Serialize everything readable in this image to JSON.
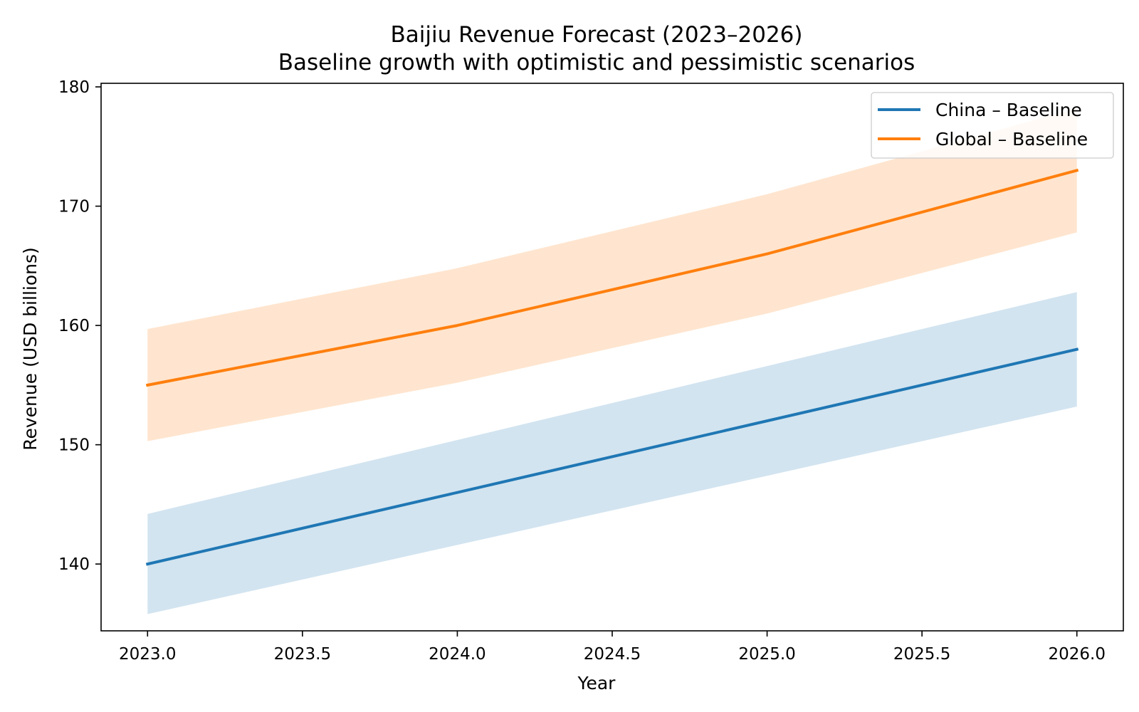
{
  "chart_data": {
    "type": "line",
    "title": "Baijiu Revenue Forecast (2023–2026)",
    "subtitle": "Baseline growth with optimistic and pessimistic scenarios",
    "xlabel": "Year",
    "ylabel": "Revenue (USD billions)",
    "x": [
      2023,
      2024,
      2025,
      2026
    ],
    "xlim": [
      2022.85,
      2026.15
    ],
    "ylim": [
      134.4,
      180.3
    ],
    "xticks": [
      2023.0,
      2023.5,
      2024.0,
      2024.5,
      2025.0,
      2025.5,
      2026.0
    ],
    "xtick_labels": [
      "2023.0",
      "2023.5",
      "2024.0",
      "2024.5",
      "2025.0",
      "2025.5",
      "2026.0"
    ],
    "yticks": [
      140,
      150,
      160,
      170,
      180
    ],
    "ytick_labels": [
      "140",
      "150",
      "160",
      "170",
      "180"
    ],
    "grid": false,
    "legend_position": "top-right",
    "series": [
      {
        "name": "China – Baseline",
        "color": "#1f77b4",
        "band_color": "#1f77b4",
        "values": [
          140,
          146,
          152,
          158
        ],
        "upper": [
          144.2,
          150.4,
          156.6,
          162.8
        ],
        "lower": [
          135.8,
          141.6,
          147.4,
          153.2
        ]
      },
      {
        "name": "Global – Baseline",
        "color": "#ff7f0e",
        "band_color": "#ff7f0e",
        "values": [
          155,
          160,
          166,
          173
        ],
        "upper": [
          159.7,
          164.8,
          171.0,
          178.2
        ],
        "lower": [
          150.3,
          155.2,
          161.0,
          167.8
        ]
      }
    ]
  }
}
